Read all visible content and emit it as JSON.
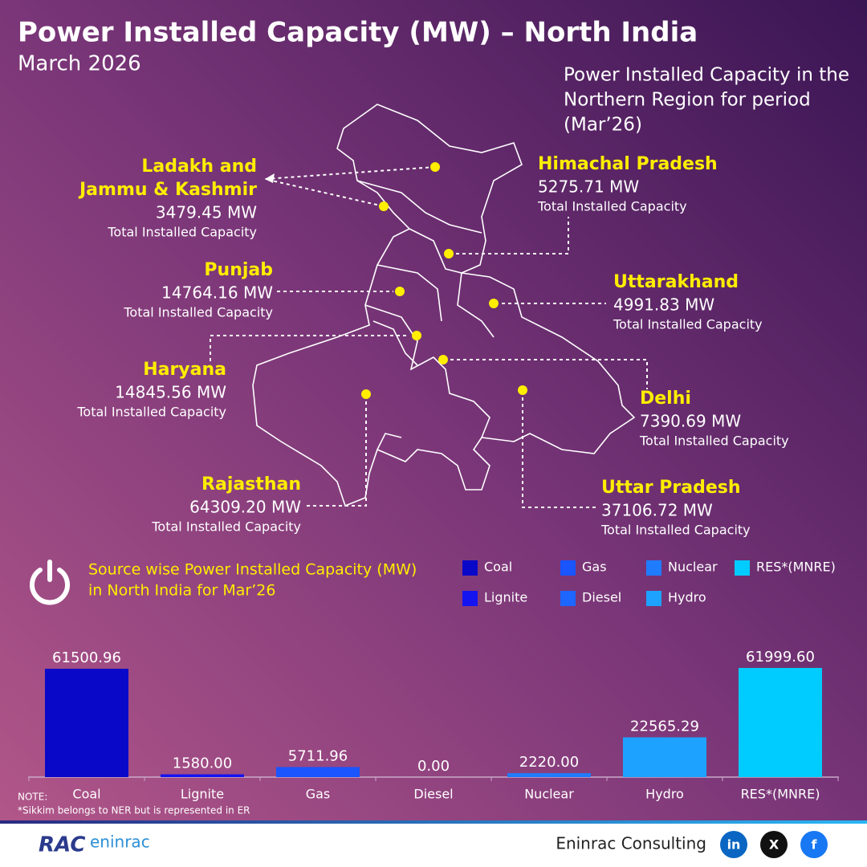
{
  "header": {
    "title": "Power Installed Capacity (MW) – North India",
    "subtitle": "March 2026",
    "map_caption": [
      "Power Installed Capacity in the",
      "Northern Region for period",
      "(Mar’26)"
    ]
  },
  "states": [
    {
      "name": [
        "Ladakh and",
        "Jammu & Kashmir"
      ],
      "value": "3479.45 MW",
      "label": "Total Installed Capacity"
    },
    {
      "name": [
        "Punjab"
      ],
      "value": "14764.16 MW",
      "label": "Total Installed Capacity"
    },
    {
      "name": [
        "Haryana"
      ],
      "value": "14845.56 MW",
      "label": "Total Installed Capacity"
    },
    {
      "name": [
        "Rajasthan"
      ],
      "value": "64309.20 MW",
      "label": "Total Installed Capacity"
    },
    {
      "name": [
        "Himachal Pradesh"
      ],
      "value": "5275.71 MW",
      "label": "Total Installed Capacity"
    },
    {
      "name": [
        "Uttarakhand"
      ],
      "value": "4991.83 MW",
      "label": "Total Installed Capacity"
    },
    {
      "name": [
        "Delhi"
      ],
      "value": "7390.69 MW",
      "label": "Total Installed Capacity"
    },
    {
      "name": [
        "Uttar Pradesh"
      ],
      "value": "37106.72 MW",
      "label": "Total Installed Capacity"
    }
  ],
  "chart_data": {
    "type": "bar",
    "title": [
      "Source wise Power Installed Capacity (MW)",
      "in North India for Mar’26"
    ],
    "categories": [
      "Coal",
      "Lignite",
      "Gas",
      "Diesel",
      "Nuclear",
      "Hydro",
      "RES*(MNRE)"
    ],
    "values": [
      61500.96,
      1580.0,
      5711.96,
      0.0,
      2220.0,
      22565.29,
      61999.6
    ],
    "value_labels": [
      "61500.96",
      "1580.00",
      "5711.96",
      "0.00",
      "2220.00",
      "22565.29",
      "61999.60"
    ],
    "colors": [
      "#0a08c8",
      "#1414f0",
      "#1a55ff",
      "#1d66ff",
      "#1f7cff",
      "#1ea2ff",
      "#00ccff"
    ]
  },
  "note": [
    "NOTE:",
    "*Sikkim belongs to NER but is represented in ER"
  ],
  "footer": {
    "logo": [
      "RAC",
      "eninrac"
    ],
    "company": "Eninrac Consulting",
    "social": [
      "in",
      "X",
      "f"
    ]
  }
}
